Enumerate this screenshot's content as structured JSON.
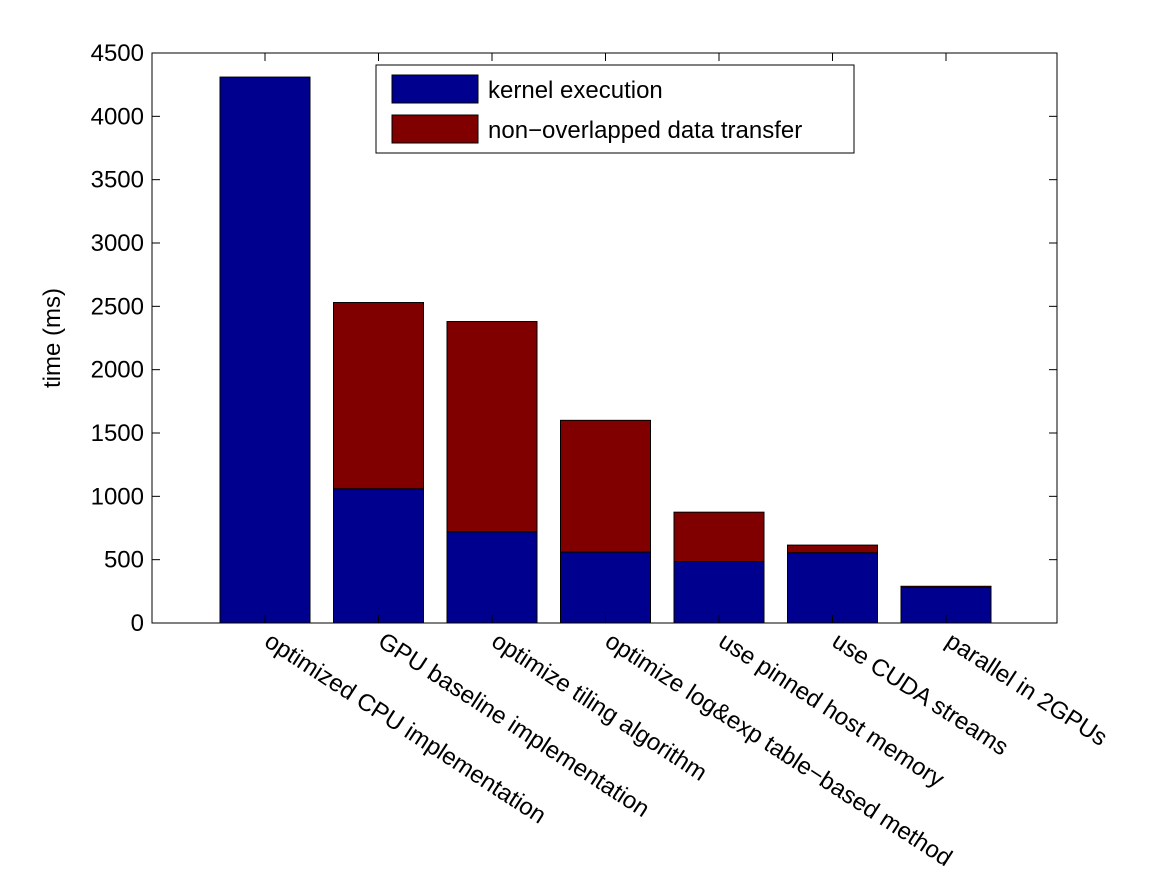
{
  "chart_data": {
    "type": "bar",
    "stacked": true,
    "title": "",
    "xlabel": "",
    "ylabel": "time (ms)",
    "ylim": [
      0,
      4500
    ],
    "yticks": [
      0,
      500,
      1000,
      1500,
      2000,
      2500,
      3000,
      3500,
      4000,
      4500
    ],
    "grid": false,
    "legend_position": "top-center",
    "categories": [
      "optimized CPU implementation",
      "GPU baseline implementation",
      "optimize tiling algorithm",
      "optimize log&exp table−based method",
      "use pinned host memory",
      "use CUDA streams",
      "parallel in 2GPUs"
    ],
    "series": [
      {
        "name": "kernel execution",
        "color": "#00008F",
        "values": [
          4310,
          1060,
          720,
          560,
          485,
          555,
          280
        ]
      },
      {
        "name": "non−overlapped data transfer",
        "color": "#800000",
        "values": [
          0,
          1470,
          1660,
          1040,
          390,
          60,
          10
        ]
      }
    ]
  }
}
